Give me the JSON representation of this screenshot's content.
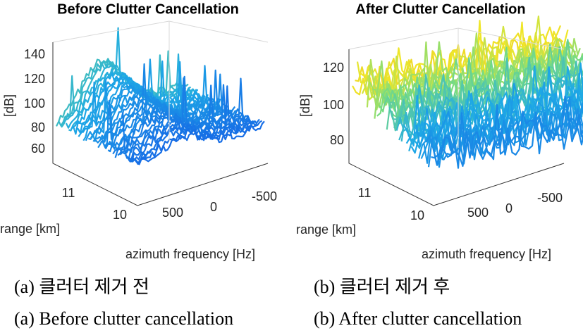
{
  "panels": [
    {
      "title": "Before Clutter Cancellation",
      "z_label": "[dB]",
      "z_ticks": [
        "140",
        "120",
        "100",
        "80",
        "60"
      ],
      "range_ticks": [
        "11",
        "10"
      ],
      "range_label": "range [km]",
      "azimuth_ticks": [
        "500",
        "0",
        "-500"
      ],
      "azimuth_label": "azimuth frequency [Hz]",
      "caption_ko": "(a) 클러터 제거 전",
      "caption_en": "(a) Before clutter cancellation"
    },
    {
      "title": "After Clutter Cancellation",
      "z_label": "[dB]",
      "z_ticks": [
        "120",
        "100",
        "80"
      ],
      "range_ticks": [
        "11",
        "10"
      ],
      "range_label": "range [km]",
      "azimuth_ticks": [
        "500",
        "0",
        "-500"
      ],
      "azimuth_label": "azimuth frequency [Hz]",
      "caption_ko": "(b) 클러터 제거 후",
      "caption_en": "(b) After clutter cancellation"
    }
  ]
}
